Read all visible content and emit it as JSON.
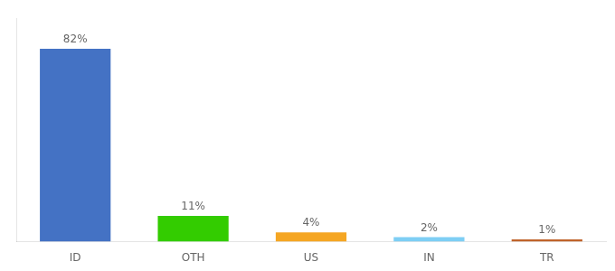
{
  "chart_data": {
    "type": "bar",
    "categories": [
      "ID",
      "OTH",
      "US",
      "IN",
      "TR"
    ],
    "values": [
      82,
      11,
      4,
      2,
      1
    ],
    "value_labels": [
      "82%",
      "11%",
      "4%",
      "2%",
      "1%"
    ],
    "colors": [
      "#4472c4",
      "#33cc00",
      "#f5a623",
      "#7ecef4",
      "#c0632a"
    ],
    "ylim": [
      0,
      95
    ],
    "grid": false,
    "data_labels": true,
    "tick_labels": "x"
  }
}
